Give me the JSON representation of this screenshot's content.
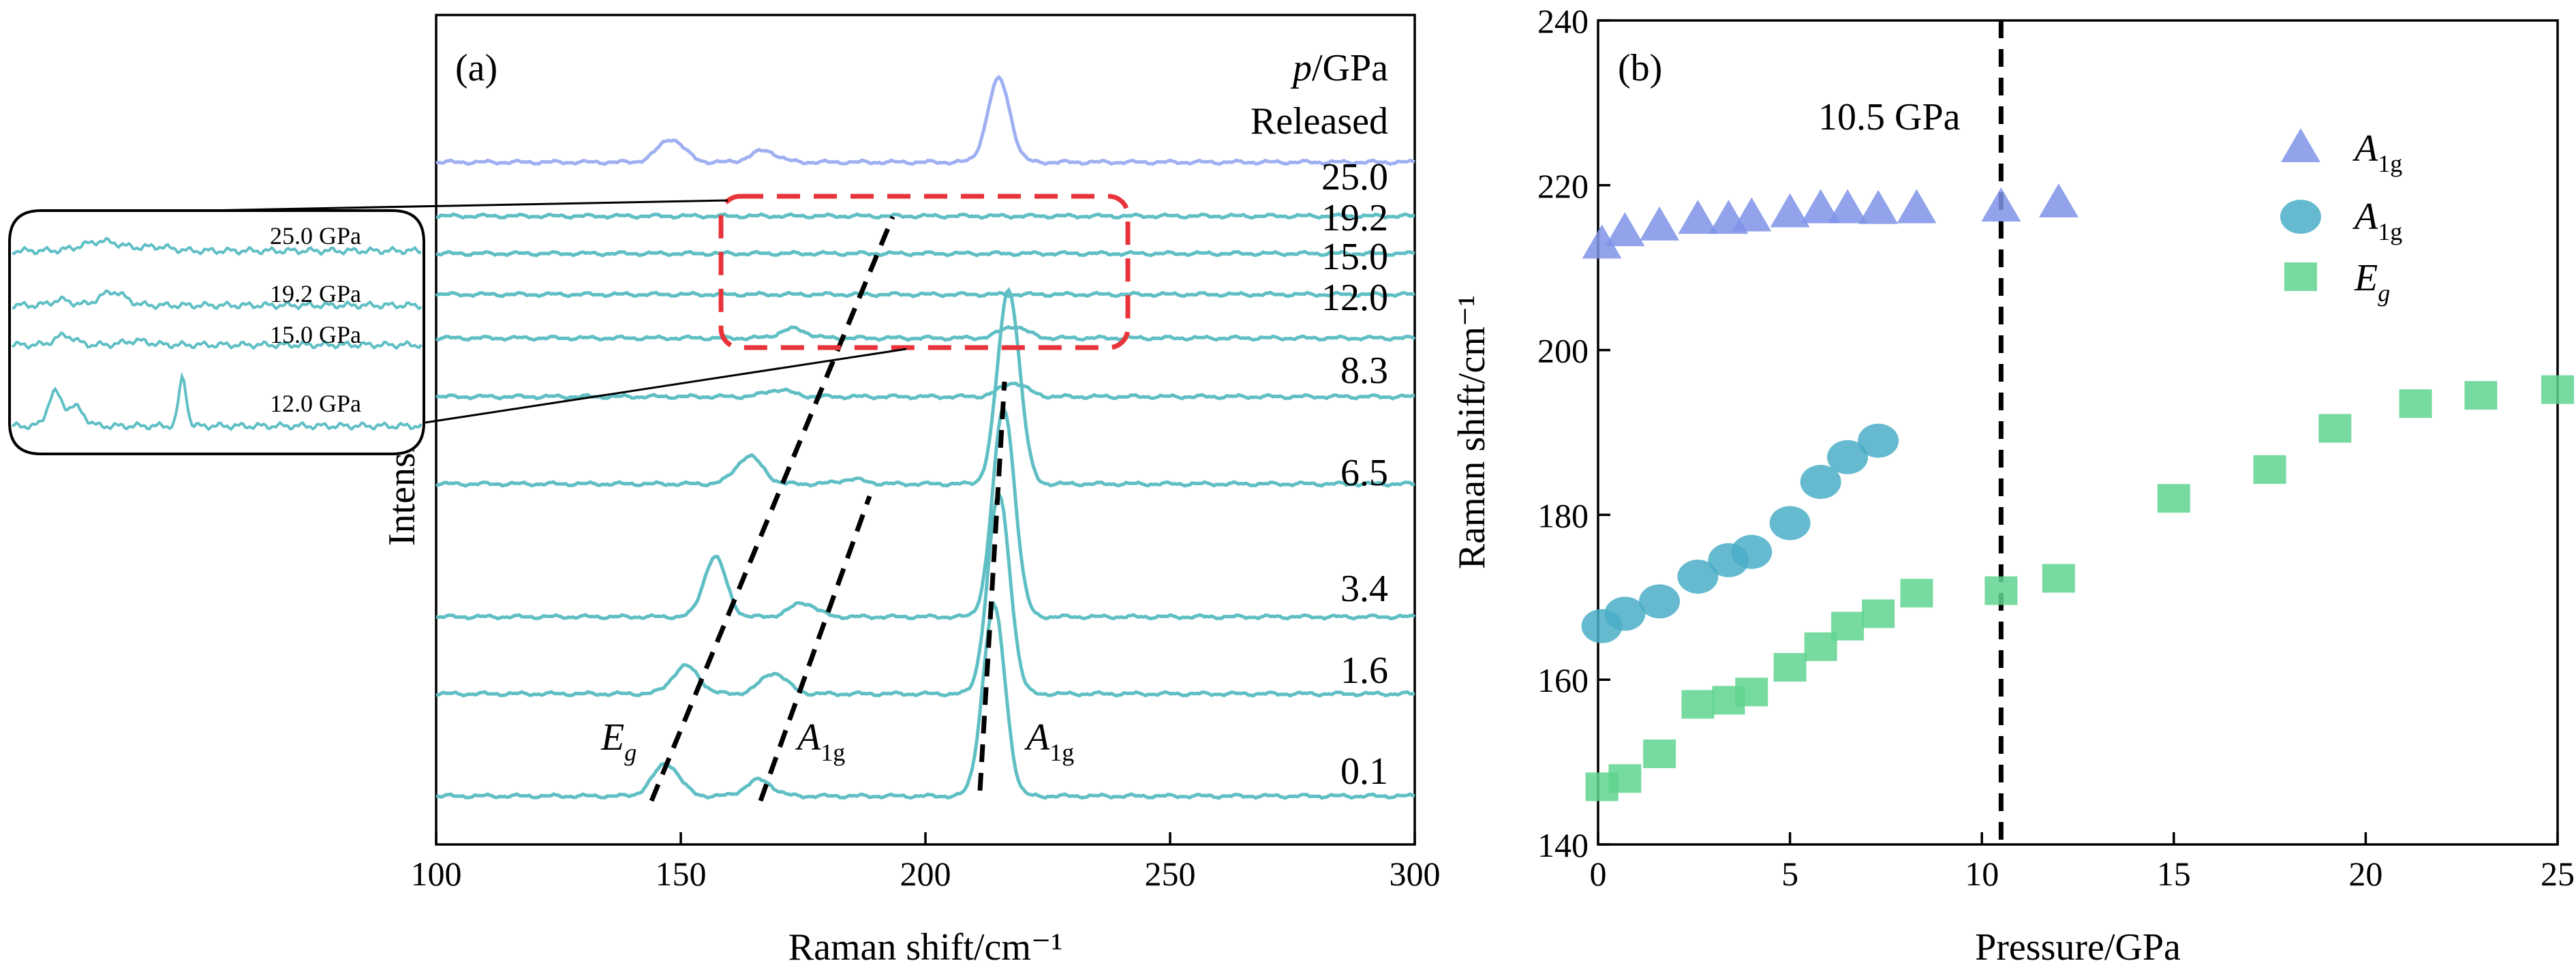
{
  "colors": {
    "spectrum_pressure": "#5fbfc4",
    "spectrum_released": "#9fb0f2",
    "a1g_high": "#7f93e8",
    "a1g_low": "#4aaec7",
    "eg": "#5fd38f",
    "box": "#e8333a",
    "axis": "#000000"
  },
  "chart_data": [
    {
      "panel": "(a)",
      "type": "line",
      "xlabel": "Raman shift/cm⁻¹",
      "ylabel": "Intensity (a. u.)",
      "xlim": [
        100,
        300
      ],
      "xticks": [
        100,
        150,
        200,
        250,
        300
      ],
      "pressure_header": "p/GPa",
      "spectra": [
        {
          "label": "Released",
          "peaks": [
            {
              "x": 148,
              "h": 0.5
            },
            {
              "x": 167,
              "h": 0.25
            },
            {
              "x": 215,
              "h": 1.8
            }
          ]
        },
        {
          "label": "25.0",
          "peaks": []
        },
        {
          "label": "19.2",
          "peaks": []
        },
        {
          "label": "15.0",
          "peaks": []
        },
        {
          "label": "12.0",
          "peaks": [
            {
              "x": 173,
              "h": 0.2
            },
            {
              "x": 218,
              "h": 0.25
            }
          ]
        },
        {
          "label": "8.3",
          "peaks": [
            {
              "x": 170,
              "h": 0.15
            },
            {
              "x": 218,
              "h": 0.3
            }
          ]
        },
        {
          "label": "6.5",
          "peaks": [
            {
              "x": 164,
              "h": 0.6
            },
            {
              "x": 185,
              "h": 0.1
            },
            {
              "x": 217,
              "h": 4.2
            }
          ]
        },
        {
          "label": "3.4",
          "peaks": [
            {
              "x": 157,
              "h": 1.3
            },
            {
              "x": 175,
              "h": 0.3
            },
            {
              "x": 216,
              "h": 4.5
            }
          ]
        },
        {
          "label": "1.6",
          "peaks": [
            {
              "x": 151,
              "h": 0.6
            },
            {
              "x": 169,
              "h": 0.45
            },
            {
              "x": 215,
              "h": 4.3
            }
          ]
        },
        {
          "label": "0.1",
          "peaks": [
            {
              "x": 147,
              "h": 0.7
            },
            {
              "x": 166,
              "h": 0.35
            },
            {
              "x": 214,
              "h": 4.1
            }
          ]
        }
      ],
      "peak_labels": [
        "Eg",
        "A1g",
        "A1g"
      ],
      "inset_labels": [
        "25.0 GPa",
        "19.2 GPa",
        "15.0 GPa",
        "12.0 GPa"
      ]
    },
    {
      "panel": "(b)",
      "type": "scatter",
      "xlabel": "Pressure/GPa",
      "ylabel": "Raman shift/cm⁻¹",
      "xlim": [
        0,
        25
      ],
      "ylim": [
        140,
        240
      ],
      "xticks": [
        0,
        5,
        10,
        15,
        20,
        25
      ],
      "yticks": [
        140,
        160,
        180,
        200,
        220,
        240
      ],
      "vline": {
        "x": 10.5,
        "label": "10.5 GPa"
      },
      "series": [
        {
          "name": "A1g",
          "marker": "triangle",
          "x": [
            0.1,
            0.7,
            1.6,
            2.6,
            3.4,
            4.0,
            5.0,
            5.8,
            6.5,
            7.3,
            8.3,
            10.5,
            12.0
          ],
          "y": [
            213.0,
            214.5,
            215.2,
            216.0,
            216.0,
            216.3,
            216.8,
            217.3,
            217.3,
            217.2,
            217.3,
            217.5,
            218.0
          ]
        },
        {
          "name": "A1g",
          "marker": "circle",
          "x": [
            0.1,
            0.7,
            1.6,
            2.6,
            3.4,
            4.0,
            5.0,
            5.8,
            6.5,
            7.3
          ],
          "y": [
            166.5,
            168.0,
            169.5,
            172.5,
            174.5,
            175.5,
            179.0,
            184.0,
            187.0,
            189.0
          ]
        },
        {
          "name": "Eg",
          "marker": "square",
          "x": [
            0.1,
            0.7,
            1.6,
            2.6,
            3.4,
            4.0,
            5.0,
            5.8,
            6.5,
            7.3,
            8.3,
            10.5,
            12.0,
            15.0,
            17.5,
            19.2,
            21.3,
            23.0,
            25.0
          ],
          "y": [
            147.0,
            148.0,
            151.0,
            157.0,
            157.5,
            158.5,
            161.5,
            164.0,
            166.5,
            168.0,
            170.5,
            170.8,
            172.3,
            182.0,
            185.5,
            190.5,
            193.5,
            194.5,
            195.2
          ]
        }
      ]
    }
  ]
}
